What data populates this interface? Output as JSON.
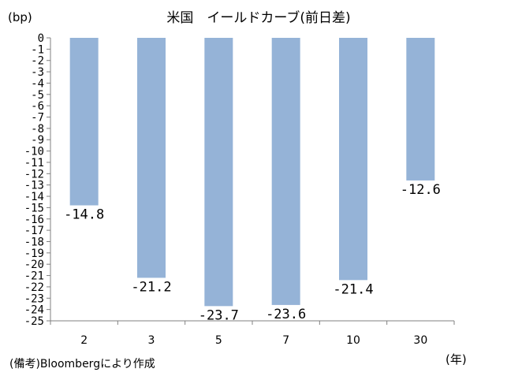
{
  "chart_data": {
    "type": "bar",
    "title": "米国　イールドカーブ(前日差)",
    "ylabel": "(bp)",
    "xlabel": "(年)",
    "categories": [
      "2",
      "3",
      "5",
      "7",
      "10",
      "30"
    ],
    "values": [
      -14.8,
      -21.2,
      -23.7,
      -23.6,
      -21.4,
      -12.6
    ],
    "data_labels": [
      "-14.8",
      "-21.2",
      "-23.7",
      "-23.6",
      "-21.4",
      "-12.6"
    ],
    "ylim": [
      -25,
      0
    ],
    "yticks": [
      "0",
      "-1",
      "-2",
      "-3",
      "-4",
      "-5",
      "-6",
      "-7",
      "-8",
      "-9",
      "-10",
      "-11",
      "-12",
      "-13",
      "-14",
      "-15",
      "-16",
      "-17",
      "-18",
      "-19",
      "-20",
      "-21",
      "-22",
      "-23",
      "-24",
      "-25"
    ],
    "bar_color": "#95b3d7",
    "grid": false,
    "legend": "none"
  },
  "footnote": "(備考)Bloombergにより作成"
}
